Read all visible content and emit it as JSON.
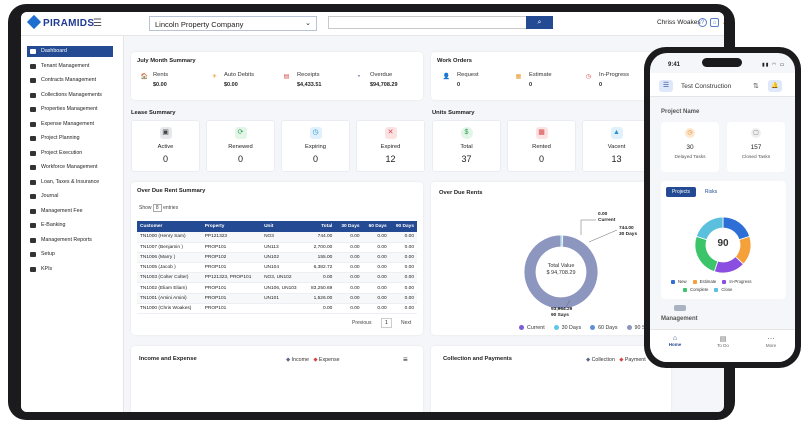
{
  "app": {
    "logo": "PIRAMIDS",
    "company": "Lincoln Property Company",
    "user": "Chriss Woakes"
  },
  "sidebar": {
    "items": [
      "Dashboard",
      "Tenant Management",
      "Contracts Management",
      "Collections Managements",
      "Properties Management",
      "Expense Management",
      "Project Planning",
      "Project Execution",
      "Workforce Management",
      "Loan, Taxes & Insurance",
      "Journal",
      "Management Fee",
      "E-Banking",
      "Management Reports",
      "Setup",
      "KPIs"
    ]
  },
  "july": {
    "title": "July Month Summary",
    "items": [
      {
        "label": "Rents",
        "value": "$0.00"
      },
      {
        "label": "Auto Debits",
        "value": "$0.00"
      },
      {
        "label": "Receipts",
        "value": "$4,433.51"
      },
      {
        "label": "Overdue",
        "value": "$94,708.29"
      }
    ]
  },
  "work_orders": {
    "title": "Work Orders",
    "items": [
      {
        "label": "Request",
        "value": "0"
      },
      {
        "label": "Estimate",
        "value": "0"
      },
      {
        "label": "In-Progress",
        "value": "0"
      }
    ]
  },
  "lease": {
    "title": "Lease Summary",
    "items": [
      {
        "label": "Active",
        "value": "0"
      },
      {
        "label": "Renewed",
        "value": "0"
      },
      {
        "label": "Expiring",
        "value": "0"
      },
      {
        "label": "Expired",
        "value": "12"
      }
    ]
  },
  "units": {
    "title": "Units Summary",
    "items": [
      {
        "label": "Total",
        "value": "37"
      },
      {
        "label": "Rented",
        "value": "0"
      },
      {
        "label": "Vacent",
        "value": "13"
      }
    ]
  },
  "overdue_table": {
    "title": "Over Due Rent Summary",
    "show_label": "Show",
    "show_value": "8",
    "entries_label": "entries",
    "columns": [
      "Customer",
      "Property",
      "Unit",
      "Total",
      "30 Days",
      "60 Days",
      "90 Days"
    ],
    "rows": [
      [
        "TN1000 (Henry Sam)",
        "PP121323",
        "NO3",
        "744.00",
        "0.00",
        "0.00",
        "0.00"
      ],
      [
        "TN1007 (Benjamin )",
        "PROP101",
        "UN113",
        "2,700.00",
        "0.00",
        "0.00",
        "0.00"
      ],
      [
        "TN1006 (Marry )",
        "PROP102",
        "UN102",
        "155.00",
        "0.00",
        "0.00",
        "0.00"
      ],
      [
        "TN1005 (Jacob )",
        "PROP101",
        "UN104",
        "6,382.72",
        "0.00",
        "0.00",
        "0.00"
      ],
      [
        "TN1003 (Colter Colter)",
        "PP121323, PROP101",
        "NO3, UN102",
        "0.00",
        "0.00",
        "0.00",
        "0.00"
      ],
      [
        "TN1002 (Eliam Eliam)",
        "PROP101",
        "UN106, UN103",
        "83,250.69",
        "0.00",
        "0.00",
        "0.00"
      ],
      [
        "TN1001 (Amini Amini)",
        "PROP101",
        "UN101",
        "1,526.00",
        "0.00",
        "0.00",
        "0.00"
      ],
      [
        "TN1000 (Chris Woakes)",
        "PROP101",
        "",
        "0.00",
        "0.00",
        "0.00",
        "0.00"
      ]
    ],
    "prev": "Previous",
    "page": "1",
    "next": "Next"
  },
  "overdue_rents": {
    "title": "Over Due Rents",
    "center_label": "Total Value",
    "center_value": "$ 94,708.29",
    "callouts": {
      "current": "0.00",
      "current_label": "Current",
      "days30": "744.00",
      "days30_label": "30 Days",
      "days90": "93,964.29",
      "days90_label": "90 Says"
    }
  },
  "chart_data": [
    {
      "type": "pie",
      "title": "Over Due Rents",
      "categories": [
        "Current",
        "30 Days",
        "60 Days",
        "90 Says"
      ],
      "values": [
        0.0,
        744.0,
        0.0,
        93964.29
      ],
      "colors": [
        "#7b5cd6",
        "#5cc8e8",
        "#5c8fd6",
        "#8c96be"
      ],
      "legend": "bottom"
    },
    {
      "type": "pie",
      "title": "",
      "categories": [
        "New",
        "Estimate",
        "In-Progress",
        "Complete",
        "Close"
      ],
      "values": [
        20,
        17,
        18,
        25,
        20
      ],
      "colors": [
        "#2d6fd6",
        "#f4a03b",
        "#8a4fe0",
        "#3cc46b",
        "#5bc0de"
      ],
      "legend": "bottom"
    }
  ],
  "income": {
    "title": "Income and Expense",
    "legend": [
      "Income",
      "Expense"
    ],
    "menu_icon": "hamburger-icon"
  },
  "collection": {
    "title": "Collection and Payments",
    "legend": [
      "Collection",
      "Payment"
    ]
  },
  "phone": {
    "time": "9:41",
    "header": "Test Construction",
    "section": "Project Name",
    "delayed": {
      "value": "30",
      "label": "Delayed Tasks"
    },
    "closed": {
      "value": "157",
      "label": "Closed Tasks"
    },
    "tabs": [
      "Projects",
      "Risks"
    ],
    "donut_value": "90",
    "legend": [
      "New",
      "Estimate",
      "In-Progress",
      "Complete",
      "Close"
    ],
    "management": "Management",
    "nav": [
      "Home",
      "To Do",
      "More"
    ]
  }
}
